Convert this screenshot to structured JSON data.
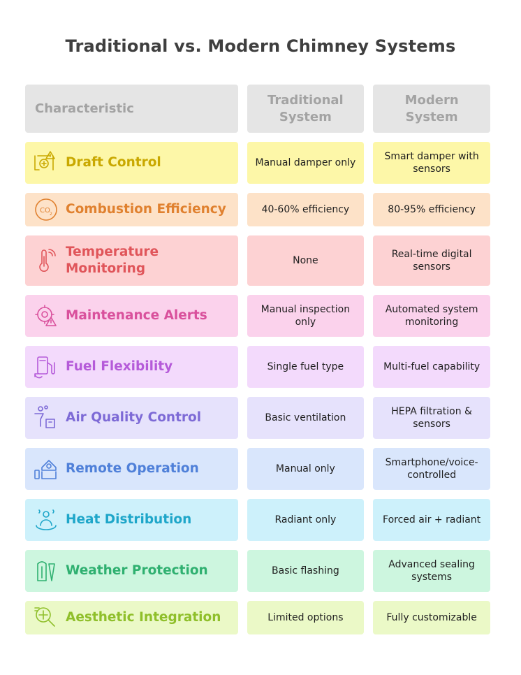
{
  "title": "Traditional vs. Modern Chimney Systems",
  "headers": {
    "characteristic": "Characteristic",
    "traditional": "Traditional System",
    "modern": "Modern System"
  },
  "rows": [
    {
      "label": "Draft Control",
      "icon": "draft-warning-icon",
      "traditional": "Manual damper only",
      "modern": "Smart damper with sensors",
      "color": "#c9a800",
      "bg": "#fdf7a8"
    },
    {
      "label": "Combustion Efficiency",
      "icon": "co2-icon",
      "traditional": "40-60% efficiency",
      "modern": "80-95% efficiency",
      "color": "#e0812f",
      "bg": "#fde2c8"
    },
    {
      "label": "Temperature Monitoring",
      "icon": "thermometer-icon",
      "traditional": "None",
      "modern": "Real-time digital sensors",
      "color": "#e0555a",
      "bg": "#fdd2d3"
    },
    {
      "label": "Maintenance Alerts",
      "icon": "gear-alert-icon",
      "traditional": "Manual inspection only",
      "modern": "Automated system monitoring",
      "color": "#d9509c",
      "bg": "#fbd2ec"
    },
    {
      "label": "Fuel Flexibility",
      "icon": "fuel-pump-icon",
      "traditional": "Single fuel type",
      "modern": "Multi-fuel capability",
      "color": "#b55ad9",
      "bg": "#f3dafc"
    },
    {
      "label": "Air Quality Control",
      "icon": "air-filter-icon",
      "traditional": "Basic ventilation",
      "modern": "HEPA filtration & sensors",
      "color": "#7d6ad6",
      "bg": "#e6e2fc"
    },
    {
      "label": "Remote Operation",
      "icon": "smart-home-icon",
      "traditional": "Manual only",
      "modern": "Smartphone/voice-controlled",
      "color": "#4f80d9",
      "bg": "#d9e6fc"
    },
    {
      "label": "Heat Distribution",
      "icon": "heat-person-icon",
      "traditional": "Radiant only",
      "modern": "Forced air + radiant",
      "color": "#1ea6c9",
      "bg": "#cdf1fb"
    },
    {
      "label": "Weather Protection",
      "icon": "raincoat-icon",
      "traditional": "Basic flashing",
      "modern": "Advanced sealing systems",
      "color": "#2fb070",
      "bg": "#cdf6df"
    },
    {
      "label": "Aesthetic Integration",
      "icon": "magnifier-design-icon",
      "traditional": "Limited options",
      "modern": "Fully customizable",
      "color": "#8fbf2a",
      "bg": "#ebf9c7"
    }
  ]
}
